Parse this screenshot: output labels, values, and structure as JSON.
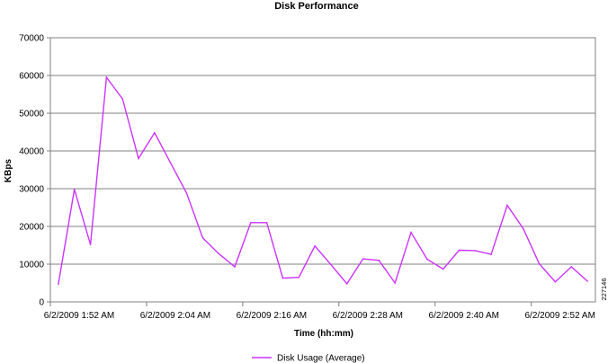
{
  "chart_data": {
    "type": "line",
    "title": "Disk Performance",
    "xlabel": "Time (hh:mm)",
    "ylabel": "KBps",
    "ylim": [
      0,
      70000
    ],
    "yticks": [
      0,
      10000,
      20000,
      30000,
      40000,
      50000,
      60000,
      70000
    ],
    "x_tick_labels": [
      "6/2/2009 1:52 AM",
      "6/2/2009 2:04 AM",
      "6/2/2009 2:16 AM",
      "6/2/2009 2:28 AM",
      "6/2/2009 2:40 AM",
      "6/2/2009 2:52 AM"
    ],
    "grid": true,
    "legend_position": "bottom",
    "series": [
      {
        "name": "Disk Usage (Average)",
        "color": "#cc33ff",
        "values": [
          4700,
          29800,
          15200,
          59500,
          53800,
          38000,
          44800,
          36800,
          28800,
          17000,
          12800,
          9300,
          21000,
          21000,
          6300,
          6500,
          14800,
          9900,
          4800,
          11400,
          11000,
          5000,
          18400,
          11300,
          8700,
          13700,
          13600,
          12600,
          25600,
          19400,
          10100,
          5300,
          9300,
          5500
        ]
      }
    ]
  },
  "side_label": "227146"
}
